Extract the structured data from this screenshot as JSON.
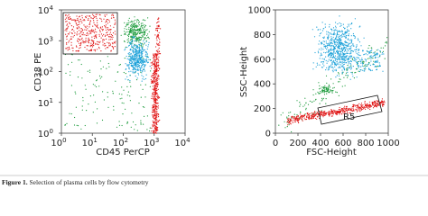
{
  "figure": {
    "panels": [
      {
        "x_label": "CD45 PerCP",
        "y_label": "CD38 PE",
        "xticks": [
          {
            "value": 1,
            "label": "10",
            "exponent": "0"
          },
          {
            "value": 10,
            "label": "10",
            "exponent": "1"
          },
          {
            "value": 100,
            "label": "10",
            "exponent": "2"
          },
          {
            "value": 1000,
            "label": "10",
            "exponent": "3"
          },
          {
            "value": 10000,
            "label": "10",
            "exponent": "4"
          }
        ],
        "yticks": [
          {
            "value": 1,
            "label": "10",
            "exponent": "0"
          },
          {
            "value": 10,
            "label": "10",
            "exponent": "1"
          },
          {
            "value": 100,
            "label": "10",
            "exponent": "2"
          },
          {
            "value": 1000,
            "label": "10",
            "exponent": "3"
          },
          {
            "value": 10000,
            "label": "10",
            "exponent": "4"
          }
        ]
      },
      {
        "x_label": "FSC-Height",
        "y_label": "SSC-Height",
        "gate_label": "R5",
        "xticks": [
          0,
          200,
          400,
          600,
          800,
          1000
        ],
        "yticks": [
          0,
          200,
          400,
          600,
          800,
          1000
        ]
      }
    ],
    "caption": {
      "label": "Figure 1.",
      "text": "Selection of plasma cells by flow cytometry"
    }
  }
}
